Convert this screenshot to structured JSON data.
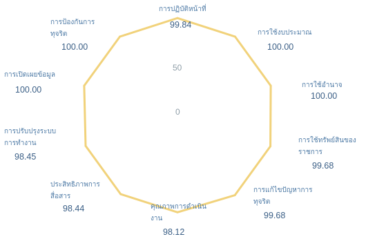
{
  "chart_data": {
    "type": "radar",
    "series_color": "#f1d27b",
    "label_color": "#4f7ba6",
    "value_color": "#3b5f86",
    "scale_ticks": [
      "50",
      "0"
    ],
    "scale_max": 100,
    "categories": [
      {
        "name": [
          "การปฏิบัติหน้าที่"
        ],
        "value": "99.84"
      },
      {
        "name": [
          "การใช้งบประมาณ"
        ],
        "value": "100.00"
      },
      {
        "name": [
          "การใช้อำนาจ"
        ],
        "value": "100.00"
      },
      {
        "name": [
          "การใช้ทรัพย์สินของ",
          "ราชการ"
        ],
        "value": "99.68"
      },
      {
        "name": [
          "การแก้ไขปัญหาการ",
          "ทุจริต"
        ],
        "value": "99.68"
      },
      {
        "name": [
          "คุณภาพการดำเนิน",
          "งาน"
        ],
        "value": "98.12"
      },
      {
        "name": [
          "ประสิทธิภาพการ",
          "สื่อสาร"
        ],
        "value": "98.44"
      },
      {
        "name": [
          "การปรับปรุงระบบ",
          "การทำงาน"
        ],
        "value": "98.45"
      },
      {
        "name": [
          "การเปิดเผยข้อมูล"
        ],
        "value": "100.00"
      },
      {
        "name": [
          "การป้องกันการ",
          "ทุจริต"
        ],
        "value": "100.00"
      }
    ]
  }
}
